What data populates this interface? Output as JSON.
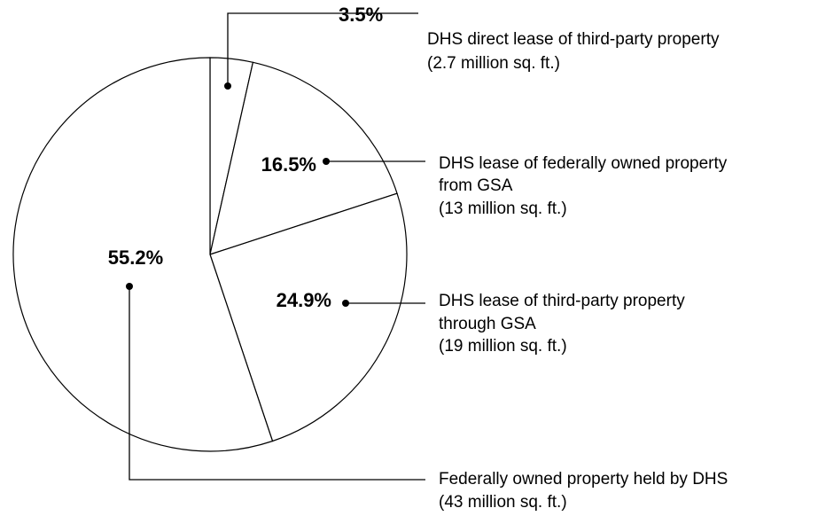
{
  "chart_data": {
    "type": "pie",
    "categories": [
      [
        "DHS direct lease of third-party property",
        "(2.7 million sq. ft.)"
      ],
      [
        "DHS lease of federally owned property",
        "from GSA",
        "(13 million sq. ft.)"
      ],
      [
        "DHS lease of third-party property",
        "through GSA",
        "(19 million sq. ft.)"
      ],
      [
        "Federally owned property held by DHS",
        "(43 million sq. ft.)"
      ]
    ],
    "values": [
      3.5,
      16.5,
      24.9,
      55.2
    ],
    "value_labels": [
      "3.5%",
      "16.5%",
      "24.9%",
      "55.2%"
    ]
  }
}
